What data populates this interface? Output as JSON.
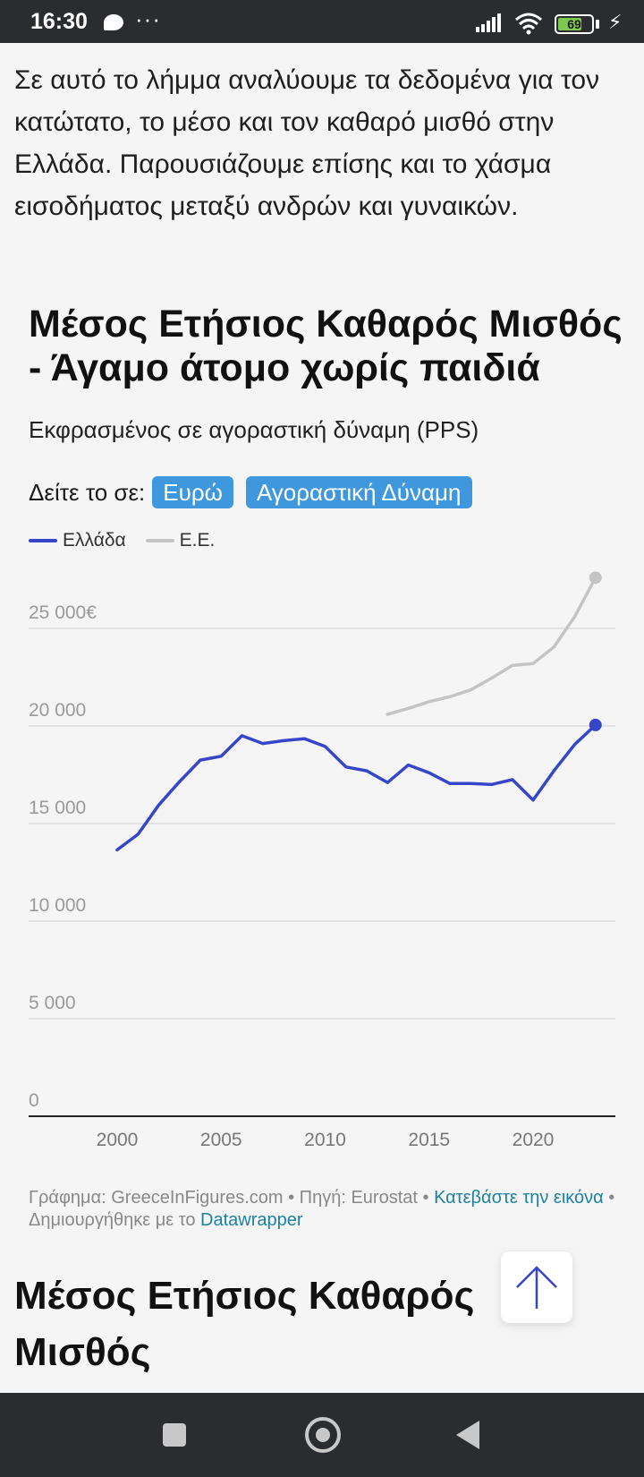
{
  "status_bar": {
    "time": "16:30",
    "dots": "···",
    "battery": "69"
  },
  "intro_text": "Σε αυτό το λήμμα αναλύουμε τα δεδομένα για τον κατώτατο, το μέσο και τον καθαρό μισθό στην Ελλάδα. Παρουσιάζουμε επίσης και το χάσμα εισοδήματος μεταξύ ανδρών και γυναικών.",
  "toggle": {
    "label": "Δείτε το σε:",
    "options": [
      "Ευρώ",
      "Αγοραστική Δύναμη"
    ]
  },
  "chart_data": {
    "type": "line",
    "title": "Μέσος Ετήσιος Καθαρός Μισθός - Άγαμο άτομο χωρίς παιδιά",
    "subtitle": "Εκφρασμένος σε αγοραστική δύναμη (PPS)",
    "xlabel": "",
    "ylabel": "",
    "ylim": [
      0,
      27500
    ],
    "xlim": [
      1995.7,
      2023.9
    ],
    "y_ticks": [
      0,
      5000,
      10000,
      15000,
      20000,
      25000
    ],
    "y_tick_labels": [
      "0",
      "5 000",
      "10 000",
      "15 000",
      "20 000",
      "25 000€"
    ],
    "x_ticks": [
      2000,
      2005,
      2010,
      2015,
      2020
    ],
    "x_tick_labels": [
      "2000",
      "2005",
      "2010",
      "2015",
      "2020"
    ],
    "grid": true,
    "legend_position": "top-left",
    "series": [
      {
        "name": "Ελλάδα",
        "color": "#3745c8",
        "x": [
          2000,
          2001,
          2002,
          2003,
          2004,
          2005,
          2006,
          2007,
          2008,
          2009,
          2010,
          2011,
          2012,
          2013,
          2014,
          2015,
          2016,
          2017,
          2018,
          2019,
          2020,
          2021,
          2022,
          2023
        ],
        "values": [
          13650,
          14450,
          15950,
          17150,
          18250,
          18450,
          19500,
          19100,
          19250,
          19350,
          18950,
          17900,
          17700,
          17100,
          18000,
          17600,
          17050,
          17050,
          17000,
          17250,
          16200,
          17700,
          19050,
          20050
        ]
      },
      {
        "name": "Ε.Ε.",
        "color": "#c4c4c4",
        "x": [
          2013,
          2014,
          2015,
          2016,
          2017,
          2018,
          2019,
          2020,
          2021,
          2022,
          2023
        ],
        "values": [
          20600,
          20900,
          21250,
          21500,
          21850,
          22450,
          23100,
          23200,
          24050,
          25600,
          27600
        ]
      }
    ]
  },
  "footer": {
    "credit": "Γράφημα: GreeceInFigures.com • Πηγή: Eurostat • ",
    "download_link": "Κατεβάστε την εικόνα",
    "made_with": " • Δημιουργήθηκε με το ",
    "datawrapper_link": "Datawrapper"
  },
  "next_section_title": "Μέσος Ετήσιος Καθαρός Μισθός"
}
